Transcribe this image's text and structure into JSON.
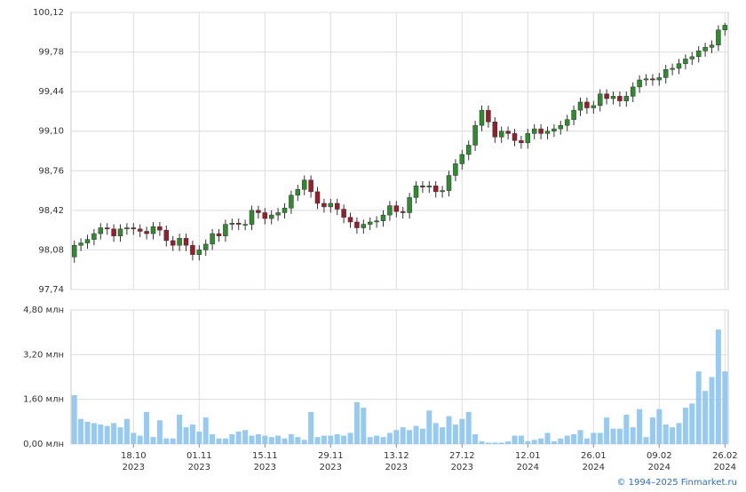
{
  "chart_data": [
    {
      "type": "candlestick",
      "open": [
        98.02,
        98.12,
        98.14,
        98.17,
        98.22,
        98.27,
        98.26,
        98.2,
        98.26,
        98.27,
        98.26,
        98.24,
        98.22,
        98.28,
        98.25,
        98.16,
        98.12,
        98.18,
        98.12,
        98.04,
        98.08,
        98.13,
        98.22,
        98.2,
        98.3,
        98.31,
        98.3,
        98.3,
        98.42,
        98.4,
        98.35,
        98.38,
        98.4,
        98.44,
        98.55,
        98.6,
        98.68,
        98.58,
        98.48,
        98.45,
        98.48,
        98.43,
        98.36,
        98.32,
        98.27,
        98.3,
        98.32,
        98.33,
        98.38,
        98.46,
        98.41,
        98.4,
        98.53,
        98.63,
        98.62,
        98.63,
        98.58,
        98.59,
        98.72,
        98.82,
        98.9,
        98.98,
        99.15,
        99.28,
        99.18,
        99.05,
        99.1,
        99.08,
        99.02,
        99.0,
        99.08,
        99.12,
        99.08,
        99.1,
        99.12,
        99.15,
        99.2,
        99.28,
        99.35,
        99.3,
        99.32,
        99.42,
        99.38,
        99.4,
        99.36,
        99.4,
        99.48,
        99.54,
        99.55,
        99.54,
        99.56,
        99.63,
        99.64,
        99.68,
        99.72,
        99.74,
        99.79,
        99.82,
        99.84,
        99.97
      ],
      "high": [
        98.16,
        98.18,
        98.21,
        98.26,
        98.31,
        98.31,
        98.3,
        98.3,
        98.31,
        98.31,
        98.3,
        98.28,
        98.32,
        98.32,
        98.29,
        98.2,
        98.22,
        98.22,
        98.16,
        98.12,
        98.17,
        98.26,
        98.26,
        98.34,
        98.35,
        98.35,
        98.34,
        98.46,
        98.46,
        98.44,
        98.42,
        98.44,
        98.48,
        98.59,
        98.64,
        98.72,
        98.72,
        98.62,
        98.52,
        98.52,
        98.52,
        98.47,
        98.4,
        98.36,
        98.34,
        98.36,
        98.37,
        98.42,
        98.5,
        98.5,
        98.45,
        98.57,
        98.67,
        98.67,
        98.67,
        98.67,
        98.63,
        98.76,
        98.86,
        98.94,
        99.02,
        99.19,
        99.32,
        99.32,
        99.22,
        99.14,
        99.14,
        99.12,
        99.06,
        99.12,
        99.16,
        99.16,
        99.14,
        99.16,
        99.19,
        99.24,
        99.32,
        99.39,
        99.39,
        99.36,
        99.46,
        99.46,
        99.44,
        99.44,
        99.44,
        99.52,
        99.58,
        99.59,
        99.59,
        99.6,
        99.67,
        99.68,
        99.72,
        99.76,
        99.78,
        99.83,
        99.86,
        99.88,
        100.01,
        100.03
      ],
      "low": [
        97.97,
        98.07,
        98.09,
        98.12,
        98.17,
        98.21,
        98.15,
        98.15,
        98.21,
        98.21,
        98.19,
        98.17,
        98.17,
        98.2,
        98.11,
        98.07,
        98.07,
        98.07,
        97.99,
        97.99,
        98.03,
        98.08,
        98.15,
        98.15,
        98.25,
        98.25,
        98.25,
        98.25,
        98.35,
        98.3,
        98.3,
        98.33,
        98.35,
        98.39,
        98.5,
        98.55,
        98.53,
        98.43,
        98.4,
        98.4,
        98.38,
        98.31,
        98.27,
        98.22,
        98.22,
        98.25,
        98.27,
        98.28,
        98.33,
        98.36,
        98.35,
        98.35,
        98.48,
        98.57,
        98.57,
        98.53,
        98.53,
        98.54,
        98.67,
        98.77,
        98.85,
        98.93,
        99.1,
        99.13,
        99.0,
        99.0,
        99.03,
        98.97,
        98.95,
        98.95,
        99.03,
        99.03,
        99.03,
        99.05,
        99.07,
        99.1,
        99.15,
        99.23,
        99.25,
        99.25,
        99.27,
        99.33,
        99.33,
        99.31,
        99.31,
        99.35,
        99.43,
        99.49,
        99.49,
        99.49,
        99.51,
        99.58,
        99.59,
        99.63,
        99.67,
        99.69,
        99.74,
        99.77,
        99.79,
        99.92
      ],
      "close": [
        98.12,
        98.14,
        98.17,
        98.22,
        98.27,
        98.26,
        98.2,
        98.26,
        98.27,
        98.26,
        98.24,
        98.22,
        98.28,
        98.25,
        98.16,
        98.12,
        98.18,
        98.12,
        98.04,
        98.08,
        98.13,
        98.22,
        98.2,
        98.3,
        98.31,
        98.3,
        98.3,
        98.42,
        98.4,
        98.35,
        98.38,
        98.4,
        98.44,
        98.55,
        98.6,
        98.68,
        98.58,
        98.48,
        98.45,
        98.48,
        98.43,
        98.36,
        98.32,
        98.27,
        98.3,
        98.32,
        98.33,
        98.38,
        98.46,
        98.41,
        98.4,
        98.53,
        98.63,
        98.62,
        98.63,
        98.58,
        98.59,
        98.72,
        98.82,
        98.9,
        98.98,
        99.15,
        99.28,
        99.18,
        99.05,
        99.1,
        99.08,
        99.02,
        99.0,
        99.08,
        99.12,
        99.08,
        99.1,
        99.12,
        99.15,
        99.2,
        99.28,
        99.35,
        99.3,
        99.32,
        99.42,
        99.38,
        99.4,
        99.36,
        99.4,
        99.48,
        99.54,
        99.55,
        99.54,
        99.56,
        99.63,
        99.64,
        99.68,
        99.72,
        99.74,
        99.79,
        99.82,
        99.84,
        99.97,
        100.01
      ],
      "up_color": "#2e8b2e",
      "down_color": "#9b1c2c",
      "ylim": [
        97.74,
        100.12
      ],
      "yticks": [
        {
          "value": 97.74,
          "label": "97,74"
        },
        {
          "value": 98.08,
          "label": "98,08"
        },
        {
          "value": 98.42,
          "label": "98,42"
        },
        {
          "value": 98.76,
          "label": "98,76"
        },
        {
          "value": 99.1,
          "label": "99,10"
        },
        {
          "value": 99.44,
          "label": "99,44"
        },
        {
          "value": 99.78,
          "label": "99,78"
        },
        {
          "value": 100.12,
          "label": "100,12"
        }
      ],
      "grid": true
    },
    {
      "type": "bar",
      "categories": [
        null,
        null,
        null,
        null,
        null,
        null,
        null,
        null,
        null,
        "18.10",
        null,
        null,
        null,
        null,
        null,
        null,
        null,
        null,
        null,
        "01.11",
        null,
        null,
        null,
        null,
        null,
        null,
        null,
        null,
        null,
        "15.11",
        null,
        null,
        null,
        null,
        null,
        null,
        null,
        null,
        null,
        "29.11",
        null,
        null,
        null,
        null,
        null,
        null,
        null,
        null,
        null,
        "13.12",
        null,
        null,
        null,
        null,
        null,
        null,
        null,
        null,
        null,
        "27.12",
        null,
        null,
        null,
        null,
        null,
        null,
        null,
        null,
        null,
        "12.01",
        null,
        null,
        null,
        null,
        null,
        null,
        null,
        null,
        null,
        "26.01",
        null,
        null,
        null,
        null,
        null,
        null,
        null,
        null,
        null,
        "09.02",
        null,
        null,
        null,
        null,
        null,
        null,
        null,
        null,
        null,
        "26.02"
      ],
      "category_years": [
        null,
        null,
        null,
        null,
        null,
        null,
        null,
        null,
        null,
        "2023",
        null,
        null,
        null,
        null,
        null,
        null,
        null,
        null,
        null,
        "2023",
        null,
        null,
        null,
        null,
        null,
        null,
        null,
        null,
        null,
        "2023",
        null,
        null,
        null,
        null,
        null,
        null,
        null,
        null,
        null,
        "2023",
        null,
        null,
        null,
        null,
        null,
        null,
        null,
        null,
        null,
        "2023",
        null,
        null,
        null,
        null,
        null,
        null,
        null,
        null,
        null,
        "2023",
        null,
        null,
        null,
        null,
        null,
        null,
        null,
        null,
        null,
        "2024",
        null,
        null,
        null,
        null,
        null,
        null,
        null,
        null,
        null,
        "2024",
        null,
        null,
        null,
        null,
        null,
        null,
        null,
        null,
        null,
        "2024",
        null,
        null,
        null,
        null,
        null,
        null,
        null,
        null,
        null,
        "2024"
      ],
      "values": [
        1.75,
        0.9,
        0.8,
        0.75,
        0.7,
        0.65,
        0.75,
        0.6,
        0.9,
        0.4,
        0.3,
        1.15,
        0.25,
        0.85,
        0.2,
        0.2,
        1.05,
        0.6,
        0.7,
        0.45,
        0.95,
        0.35,
        0.2,
        0.2,
        0.35,
        0.45,
        0.5,
        0.3,
        0.35,
        0.3,
        0.25,
        0.3,
        0.2,
        0.35,
        0.25,
        0.15,
        1.15,
        0.25,
        0.3,
        0.3,
        0.35,
        0.3,
        0.4,
        1.5,
        1.3,
        0.25,
        0.3,
        0.25,
        0.4,
        0.5,
        0.6,
        0.5,
        0.65,
        0.55,
        1.2,
        0.75,
        0.6,
        1.0,
        0.7,
        0.9,
        1.15,
        0.35,
        0.1,
        0.05,
        0.05,
        0.05,
        0.1,
        0.3,
        0.3,
        0.1,
        0.15,
        0.2,
        0.4,
        0.1,
        0.2,
        0.3,
        0.35,
        0.5,
        0.2,
        0.4,
        0.4,
        0.95,
        0.55,
        0.55,
        1.05,
        0.6,
        1.25,
        0.25,
        0.95,
        1.25,
        0.7,
        0.6,
        0.75,
        1.3,
        1.45,
        2.6,
        1.9,
        2.4,
        4.1,
        2.6
      ],
      "color": "#8cc4ef",
      "ylim": [
        0,
        4.8
      ],
      "yticks": [
        {
          "value": 0,
          "label": "0,00 млн"
        },
        {
          "value": 1.6,
          "label": "1,60 млн"
        },
        {
          "value": 3.2,
          "label": "3,20 млн"
        },
        {
          "value": 4.8,
          "label": "4,80 млн"
        }
      ],
      "grid": true
    }
  ],
  "footer": "© 1994–2025 Finmarket.ru"
}
